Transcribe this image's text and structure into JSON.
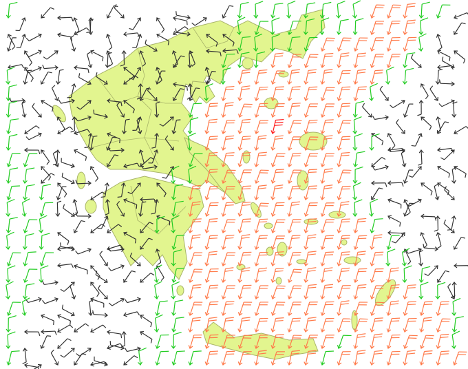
{
  "map": {
    "land_color": "#e2f58f",
    "coast_color": "#a9b56a",
    "background_color": "#ffffff"
  },
  "wind_barbs": {
    "categories": {
      "b": {
        "color": "#333333",
        "barbs": 0.5
      },
      "g": {
        "color": "#22cc22",
        "barbs": 1
      },
      "o": {
        "color": "#ff7a4a",
        "barbs": 2
      },
      "r": {
        "color": "#ff1a1a",
        "barbs": 3
      }
    },
    "rows": [
      "gbbbbbbbbbbbbbggggggggoooggb",
      "bbbbbbbbbbbbbbggggggggooogbb",
      "bbbbbbbbbbbbbbgggggoooooogbb",
      "bbbbbbbbbbbbbgggoooooooogbbb",
      "gbbbbbbbbbbbbgoooooooooggbbb",
      "gbbbbbbbbbbbgooooooooogbbbbb",
      "gbbbbbbbbbbgooooooooogbbbbbb",
      "gbbbbbbbbbbgooooroooogbbbbbb",
      "gbbbbbbbbbbgoooooooooggbbbbb",
      "ggbbbbbbbbbgooooooooogbbbbbb",
      "ggbbbbbbbbggooooooooogbbbbbb",
      "gggbbbbbbbgoooooooooogbbbbbb",
      "gggbbbbbbbgooooooooooggbbbbb",
      "gggbbbbbbggooooooooooogbbbbb",
      "gggbbbbbbbgoooooooooooogbbbb",
      "gggbbbbbbbgooooooooooooggbbb",
      "gggbbbbbbggoooooooooooooggbb",
      "ggbbbbbbbggooooooooooooooggb",
      "ggbbbbbbbggoooooooooooooooog",
      "gbbbbbbbbggoooooooooooooooog",
      "gbbbbbbbbggooooooooogoooooog",
      "gbbbbbbbggggooooooogoooooooo"
    ]
  }
}
